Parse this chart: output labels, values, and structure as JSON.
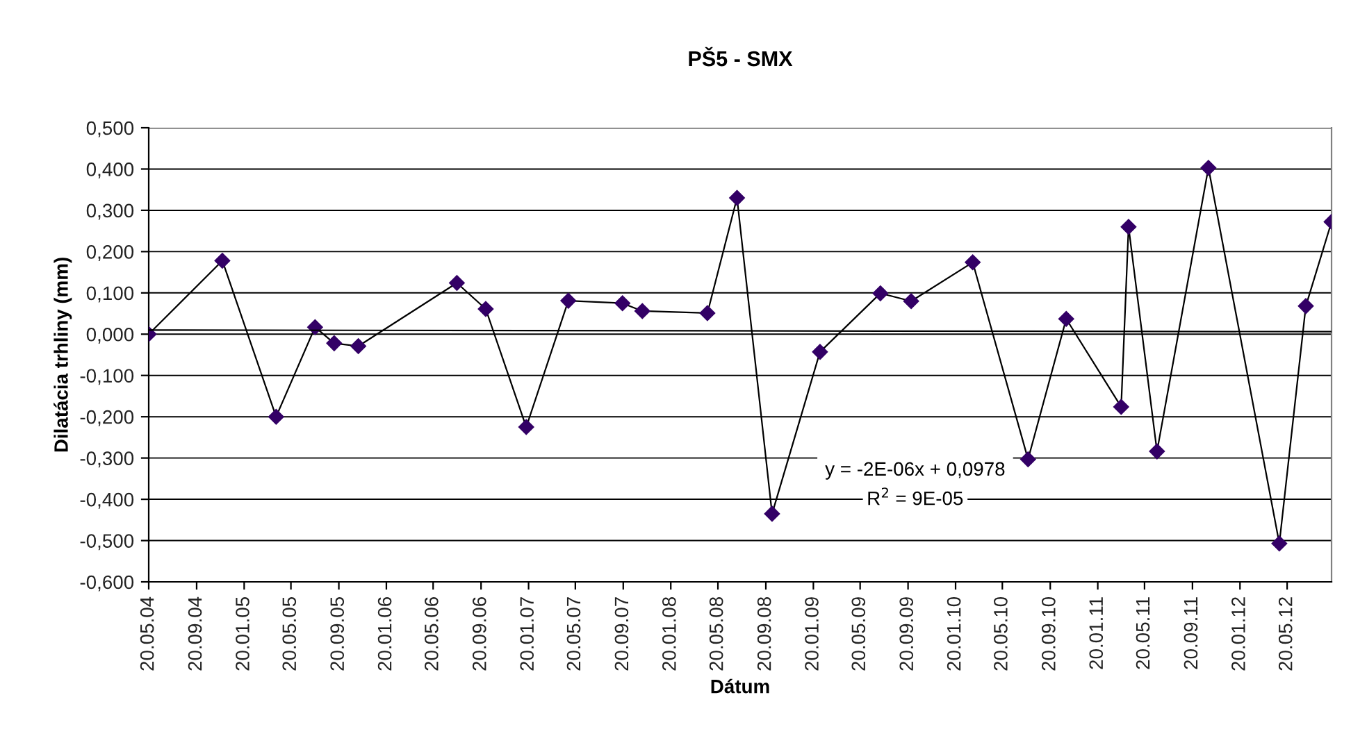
{
  "chart_data": {
    "type": "line",
    "title": "PŠ5 - SMX",
    "xlabel": "Dátum",
    "ylabel": "Dilatácia trhliny (mm)",
    "series": [
      {
        "color": "#330066",
        "marker": "diamond",
        "x": [
          "2004-05-20",
          "2004-11-25",
          "2005-04-12",
          "2005-07-21",
          "2005-09-08",
          "2005-11-09",
          "2006-07-20",
          "2006-10-02",
          "2007-01-14",
          "2007-05-02",
          "2007-09-18",
          "2007-11-08",
          "2008-04-23",
          "2008-07-08",
          "2008-10-06",
          "2009-02-06",
          "2009-07-11",
          "2009-09-28",
          "2010-03-05",
          "2010-07-25",
          "2010-10-31",
          "2011-03-21",
          "2011-04-09",
          "2011-06-21",
          "2011-10-31",
          "2012-04-30",
          "2012-07-07",
          "2012-09-11"
        ],
        "values": [
          0.0,
          0.178,
          -0.2,
          0.017,
          -0.022,
          -0.029,
          0.124,
          0.061,
          -0.225,
          0.081,
          0.075,
          0.056,
          0.051,
          0.33,
          -0.435,
          -0.043,
          0.099,
          0.08,
          0.174,
          -0.303,
          0.037,
          -0.176,
          0.26,
          -0.284,
          0.403,
          -0.507,
          0.068,
          0.272
        ]
      },
      {
        "color": "#000000",
        "marker": "none",
        "x": [
          "2004-05-20",
          "2012-09-11"
        ],
        "values": [
          0.01,
          0.006
        ]
      }
    ],
    "annotations": [
      "y = -2E-06x + 0,0978",
      "R$^{2}$ = 9E-05"
    ],
    "xlim": [
      "2004-05-20",
      "2012-09-11"
    ],
    "xticks": [
      {
        "value": "2004-05-20",
        "label": "20.05.04"
      },
      {
        "value": "2004-09-20",
        "label": "20.09.04"
      },
      {
        "value": "2005-01-20",
        "label": "20.01.05"
      },
      {
        "value": "2005-05-20",
        "label": "20.05.05"
      },
      {
        "value": "2005-09-20",
        "label": "20.09.05"
      },
      {
        "value": "2006-01-20",
        "label": "20.01.06"
      },
      {
        "value": "2006-05-20",
        "label": "20.05.06"
      },
      {
        "value": "2006-09-20",
        "label": "20.09.06"
      },
      {
        "value": "2007-01-20",
        "label": "20.01.07"
      },
      {
        "value": "2007-05-20",
        "label": "20.05.07"
      },
      {
        "value": "2007-09-20",
        "label": "20.09.07"
      },
      {
        "value": "2008-01-20",
        "label": "20.01.08"
      },
      {
        "value": "2008-05-20",
        "label": "20.05.08"
      },
      {
        "value": "2008-09-20",
        "label": "20.09.08"
      },
      {
        "value": "2009-01-20",
        "label": "20.01.09"
      },
      {
        "value": "2009-05-20",
        "label": "20.05.09"
      },
      {
        "value": "2009-09-20",
        "label": "20.09.09"
      },
      {
        "value": "2010-01-20",
        "label": "20.01.10"
      },
      {
        "value": "2010-05-20",
        "label": "20.05.10"
      },
      {
        "value": "2010-09-20",
        "label": "20.09.10"
      },
      {
        "value": "2011-01-20",
        "label": "20.01.11"
      },
      {
        "value": "2011-05-20",
        "label": "20.05.11"
      },
      {
        "value": "2011-09-20",
        "label": "20.09.11"
      },
      {
        "value": "2012-01-20",
        "label": "20.01.12"
      },
      {
        "value": "2012-05-20",
        "label": "20.05.12"
      }
    ],
    "ylim": [
      -0.6,
      0.5
    ],
    "yticks": [
      {
        "value": -0.6,
        "label": "-0,600"
      },
      {
        "value": -0.5,
        "label": "-0,500"
      },
      {
        "value": -0.4,
        "label": "-0,400"
      },
      {
        "value": -0.3,
        "label": "-0,300"
      },
      {
        "value": -0.2,
        "label": "-0,200"
      },
      {
        "value": -0.1,
        "label": "-0,100"
      },
      {
        "value": 0.0,
        "label": "0,000"
      },
      {
        "value": 0.1,
        "label": "0,100"
      },
      {
        "value": 0.2,
        "label": "0,200"
      },
      {
        "value": 0.3,
        "label": "0,300"
      },
      {
        "value": 0.4,
        "label": "0,400"
      },
      {
        "value": 0.5,
        "label": "0,500"
      }
    ],
    "grid": "y",
    "legend": false
  }
}
